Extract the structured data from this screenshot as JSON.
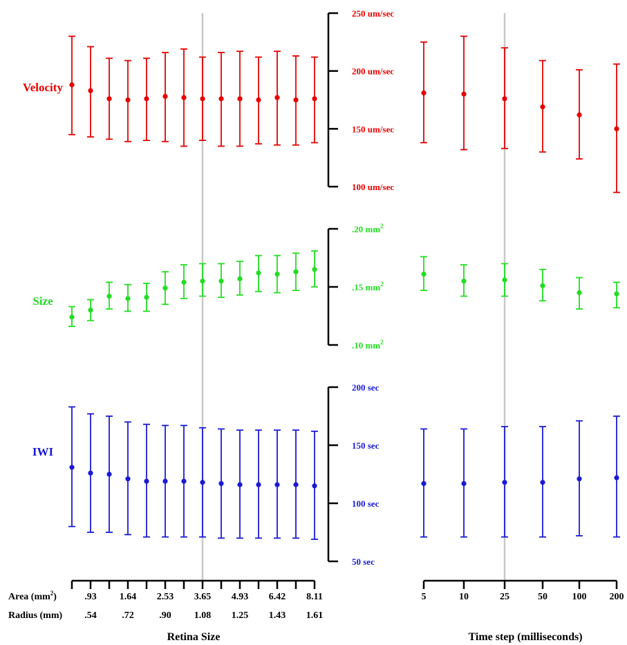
{
  "chart_data": {
    "type": "scatter",
    "grid": false,
    "legend": "none",
    "guide_columns": {
      "left": 7,
      "right": 2
    },
    "left_axis": {
      "area_label": "Area (mm²)",
      "radius_label": "Radius (mm)",
      "area_ticks": [
        ".93",
        "1.64",
        "2.53",
        "3.65",
        "4.93",
        "6.42",
        "8.11"
      ],
      "radius_ticks": [
        ".54",
        ".72",
        ".90",
        "1.08",
        "1.25",
        "1.43",
        "1.61"
      ],
      "xlabel": "Retina Size"
    },
    "right_axis": {
      "categories": [
        "5",
        "10",
        "25",
        "50",
        "100",
        "200"
      ],
      "xlabel": "Time step (milliseconds)"
    },
    "panels": [
      {
        "name": "Velocity",
        "color": "#e60000",
        "ylim": [
          100,
          250
        ],
        "ticks": [
          "250 um/sec",
          "200 um/sec",
          "150 um/sec",
          "100 um/sec"
        ],
        "tick_values": [
          250,
          200,
          150,
          100
        ],
        "left_series": {
          "mean": [
            188,
            183,
            176,
            175,
            176,
            178,
            177,
            176,
            176,
            176,
            175,
            177,
            175,
            176
          ],
          "upper": [
            230,
            221,
            211,
            209,
            211,
            216,
            219,
            212,
            216,
            217,
            212,
            217,
            213,
            212
          ],
          "lower": [
            145,
            143,
            141,
            139,
            140,
            139,
            135,
            140,
            135,
            135,
            137,
            136,
            136,
            138
          ]
        },
        "right_series": {
          "mean": [
            181,
            180,
            176,
            169,
            162,
            150
          ],
          "upper": [
            225,
            230,
            220,
            209,
            201,
            206
          ],
          "lower": [
            138,
            132,
            133,
            130,
            124,
            95
          ]
        }
      },
      {
        "name": "Size",
        "color": "#22dd22",
        "ylim": [
          0.1,
          0.2
        ],
        "ticks": [
          ".20 mm²",
          ".15 mm²",
          ".10 mm²"
        ],
        "tick_values": [
          0.2,
          0.15,
          0.1
        ],
        "left_series": {
          "mean": [
            0.124,
            0.13,
            0.142,
            0.14,
            0.141,
            0.149,
            0.154,
            0.155,
            0.155,
            0.157,
            0.162,
            0.161,
            0.163,
            0.165
          ],
          "upper": [
            0.133,
            0.139,
            0.154,
            0.152,
            0.153,
            0.163,
            0.169,
            0.17,
            0.17,
            0.172,
            0.177,
            0.177,
            0.179,
            0.181
          ],
          "lower": [
            0.116,
            0.121,
            0.131,
            0.129,
            0.129,
            0.135,
            0.14,
            0.142,
            0.141,
            0.143,
            0.146,
            0.145,
            0.147,
            0.15
          ]
        },
        "right_series": {
          "mean": [
            0.161,
            0.155,
            0.156,
            0.151,
            0.145,
            0.144
          ],
          "upper": [
            0.176,
            0.169,
            0.17,
            0.165,
            0.158,
            0.154
          ],
          "lower": [
            0.147,
            0.142,
            0.142,
            0.138,
            0.131,
            0.132
          ]
        }
      },
      {
        "name": "IWI",
        "color": "#1a1ad6",
        "ylim": [
          50,
          200
        ],
        "ticks": [
          "200 sec",
          "150 sec",
          "100 sec",
          "50 sec"
        ],
        "tick_values": [
          200,
          150,
          100,
          50
        ],
        "left_series": {
          "mean": [
            131,
            126,
            125,
            121,
            119,
            119,
            119,
            118,
            117,
            116,
            116,
            116,
            116,
            115
          ],
          "upper": [
            183,
            177,
            175,
            170,
            168,
            167,
            167,
            165,
            164,
            163,
            163,
            163,
            163,
            162
          ],
          "lower": [
            80,
            75,
            75,
            73,
            71,
            71,
            71,
            71,
            70,
            70,
            70,
            70,
            70,
            69
          ]
        },
        "right_series": {
          "mean": [
            117,
            117,
            118,
            118,
            121,
            122
          ],
          "upper": [
            164,
            164,
            166,
            166,
            171,
            175
          ],
          "lower": [
            71,
            71,
            71,
            71,
            72,
            71
          ]
        }
      }
    ]
  }
}
